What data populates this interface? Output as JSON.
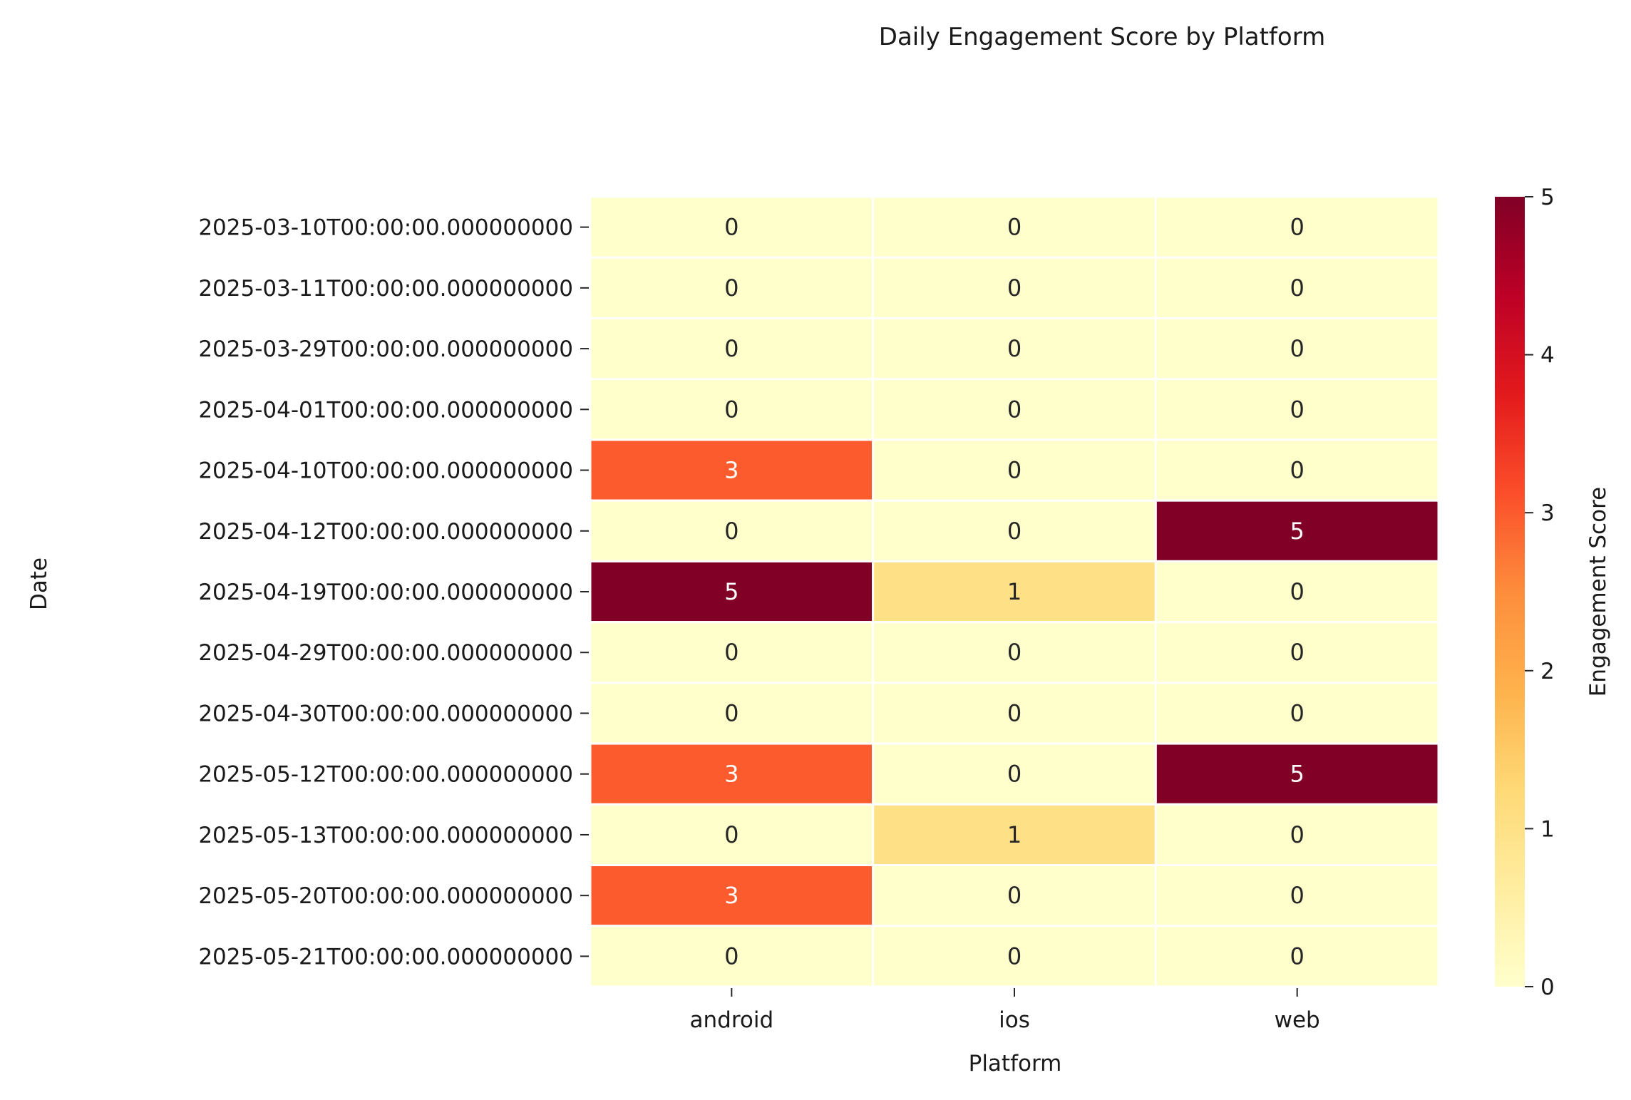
{
  "chart_data": {
    "type": "heatmap",
    "title": "Daily Engagement Score by Platform",
    "xlabel": "Platform",
    "ylabel": "Date",
    "x_categories": [
      "android",
      "ios",
      "web"
    ],
    "y_categories": [
      "2025-03-10T00:00:00.000000000",
      "2025-03-11T00:00:00.000000000",
      "2025-03-29T00:00:00.000000000",
      "2025-04-01T00:00:00.000000000",
      "2025-04-10T00:00:00.000000000",
      "2025-04-12T00:00:00.000000000",
      "2025-04-19T00:00:00.000000000",
      "2025-04-29T00:00:00.000000000",
      "2025-04-30T00:00:00.000000000",
      "2025-05-12T00:00:00.000000000",
      "2025-05-13T00:00:00.000000000",
      "2025-05-20T00:00:00.000000000",
      "2025-05-21T00:00:00.000000000"
    ],
    "values": [
      [
        0,
        0,
        0
      ],
      [
        0,
        0,
        0
      ],
      [
        0,
        0,
        0
      ],
      [
        0,
        0,
        0
      ],
      [
        3,
        0,
        0
      ],
      [
        0,
        0,
        5
      ],
      [
        5,
        1,
        0
      ],
      [
        0,
        0,
        0
      ],
      [
        0,
        0,
        0
      ],
      [
        3,
        0,
        5
      ],
      [
        0,
        1,
        0
      ],
      [
        3,
        0,
        0
      ],
      [
        0,
        0,
        0
      ]
    ],
    "colorbar": {
      "label": "Engagement Score",
      "range": [
        0,
        5
      ],
      "ticks": [
        "0",
        "1",
        "2",
        "3",
        "4",
        "5"
      ],
      "colormap": "YlOrRd",
      "colors": [
        "#ffffcc",
        "#ffeda0",
        "#fed976",
        "#feb24c",
        "#fd8d3c",
        "#fc4e2a",
        "#e31a1c",
        "#bd0026",
        "#800026"
      ]
    },
    "cell_border_color": "#ffffff",
    "annotation_dark_color": "#262626",
    "annotation_light_color": "#ffffff"
  }
}
